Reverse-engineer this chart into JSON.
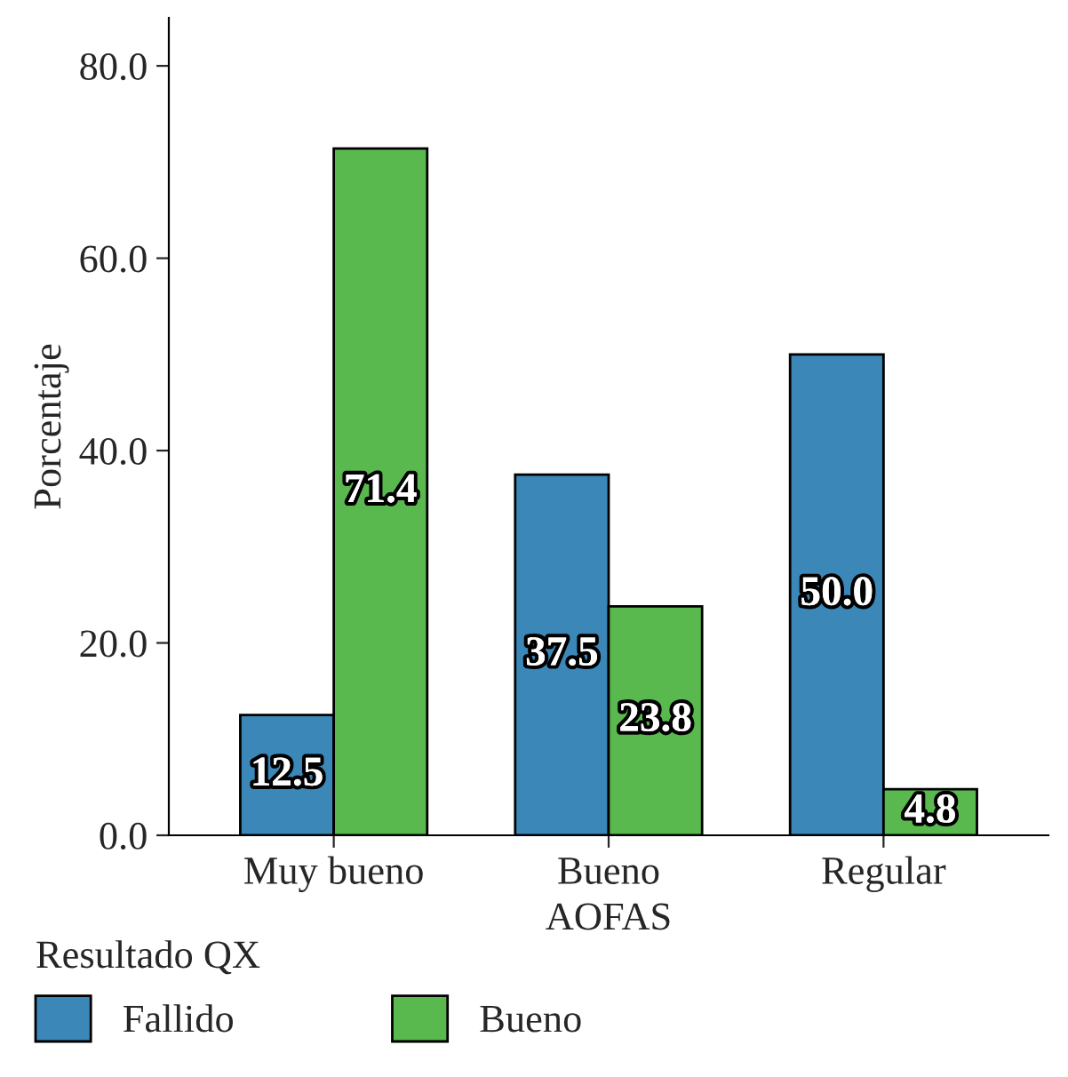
{
  "chart_data": {
    "type": "bar",
    "xlabel": "AOFAS",
    "ylabel": "Porcentaje",
    "legend_title": "Resultado QX",
    "categories": [
      "Muy bueno",
      "Bueno",
      "Regular"
    ],
    "series": [
      {
        "name": "Fallido",
        "color": "#3a87b8",
        "values": [
          12.5,
          37.5,
          50.0
        ],
        "value_labels": [
          "12.5",
          "37.5",
          "50.0"
        ]
      },
      {
        "name": "Bueno",
        "color": "#5ab94e",
        "values": [
          71.4,
          23.8,
          4.8
        ],
        "value_labels": [
          "71.4",
          "23.8",
          "4.8"
        ]
      }
    ],
    "ylim": [
      0,
      85
    ],
    "yticks": [
      {
        "value": 0,
        "label": "0.0"
      },
      {
        "value": 20,
        "label": "20.0"
      },
      {
        "value": 40,
        "label": "40.0"
      },
      {
        "value": 60,
        "label": "60.0"
      },
      {
        "value": 80,
        "label": "80.0"
      }
    ],
    "grid": false,
    "legend": "bottom"
  }
}
